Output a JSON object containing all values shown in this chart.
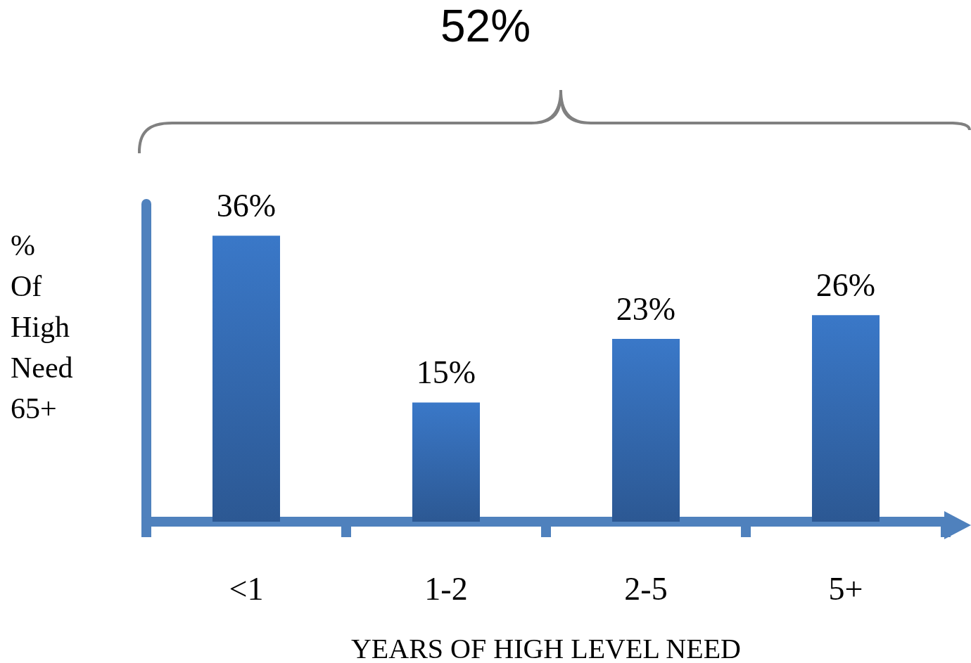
{
  "chart_data": {
    "type": "bar",
    "categories": [
      "<1",
      "1-2",
      "2-5",
      "5+"
    ],
    "values": [
      36,
      15,
      23,
      26
    ],
    "color": "#3a78c8",
    "value_labels": [
      "36%",
      "15%",
      "23%",
      "26%"
    ],
    "xlabel": "YEARS OF HIGH LEVEL NEED",
    "ylabel": "% Of High Need 65+",
    "annotations": [
      "52%"
    ],
    "grid": false
  }
}
